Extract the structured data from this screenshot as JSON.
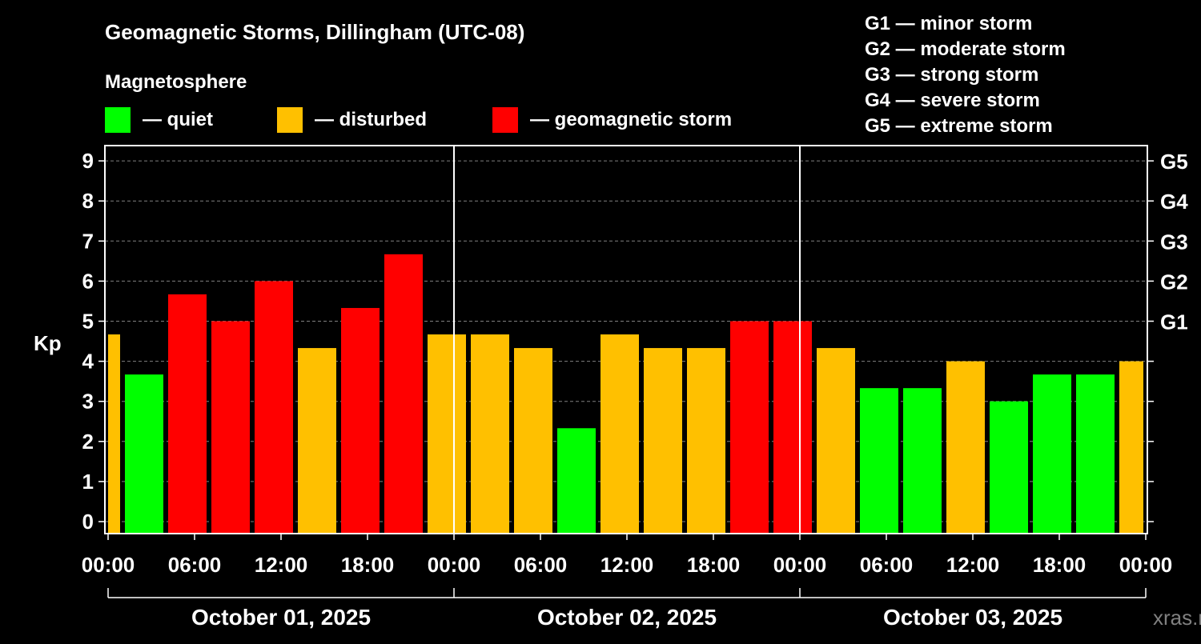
{
  "chart_data": {
    "type": "bar",
    "title": "Geomagnetic Storms, Dillingham (UTC-08)",
    "legend_title": "Magnetosphere",
    "legend": [
      {
        "label": "— quiet",
        "color": "#00ff00"
      },
      {
        "label": "— disturbed",
        "color": "#ffc000"
      },
      {
        "label": "— geomagnetic storm",
        "color": "#ff0000"
      }
    ],
    "g_scale": [
      "G1 — minor storm",
      "G2 — moderate storm",
      "G3 — strong storm",
      "G4 — severe storm",
      "G5 — extreme storm"
    ],
    "ylabel": "Kp",
    "ylim": [
      0,
      9
    ],
    "y_ticks": [
      "0",
      "1",
      "2",
      "3",
      "4",
      "5",
      "6",
      "7",
      "8",
      "9"
    ],
    "right_ticks": [
      {
        "kp": 5,
        "label": "G1"
      },
      {
        "kp": 6,
        "label": "G2"
      },
      {
        "kp": 7,
        "label": "G3"
      },
      {
        "kp": 8,
        "label": "G4"
      },
      {
        "kp": 9,
        "label": "G5"
      }
    ],
    "x_range_hours": [
      0,
      72
    ],
    "x_tick_labels": [
      "00:00",
      "06:00",
      "12:00",
      "18:00",
      "00:00",
      "06:00",
      "12:00",
      "18:00",
      "00:00",
      "06:00",
      "12:00",
      "18:00",
      "00:00"
    ],
    "dates": [
      "October 01, 2025",
      "October 02, 2025",
      "October 03, 2025"
    ],
    "bars": [
      {
        "start": -2,
        "kp": 4.67,
        "level": "disturbed"
      },
      {
        "start": 1,
        "kp": 3.67,
        "level": "quiet"
      },
      {
        "start": 4,
        "kp": 5.67,
        "level": "storm"
      },
      {
        "start": 7,
        "kp": 5.0,
        "level": "storm"
      },
      {
        "start": 10,
        "kp": 6.0,
        "level": "storm"
      },
      {
        "start": 13,
        "kp": 4.33,
        "level": "disturbed"
      },
      {
        "start": 16,
        "kp": 5.33,
        "level": "storm"
      },
      {
        "start": 19,
        "kp": 6.67,
        "level": "storm"
      },
      {
        "start": 22,
        "kp": 4.67,
        "level": "disturbed"
      },
      {
        "start": 25,
        "kp": 4.67,
        "level": "disturbed"
      },
      {
        "start": 28,
        "kp": 4.33,
        "level": "disturbed"
      },
      {
        "start": 31,
        "kp": 2.33,
        "level": "quiet"
      },
      {
        "start": 34,
        "kp": 4.67,
        "level": "disturbed"
      },
      {
        "start": 37,
        "kp": 4.33,
        "level": "disturbed"
      },
      {
        "start": 40,
        "kp": 4.33,
        "level": "disturbed"
      },
      {
        "start": 43,
        "kp": 5.0,
        "level": "storm"
      },
      {
        "start": 46,
        "kp": 5.0,
        "level": "storm"
      },
      {
        "start": 49,
        "kp": 4.33,
        "level": "disturbed"
      },
      {
        "start": 52,
        "kp": 3.33,
        "level": "quiet"
      },
      {
        "start": 55,
        "kp": 3.33,
        "level": "quiet"
      },
      {
        "start": 58,
        "kp": 4.0,
        "level": "disturbed"
      },
      {
        "start": 61,
        "kp": 3.0,
        "level": "quiet"
      },
      {
        "start": 64,
        "kp": 3.67,
        "level": "quiet"
      },
      {
        "start": 67,
        "kp": 3.67,
        "level": "quiet"
      },
      {
        "start": 70,
        "kp": 4.0,
        "level": "disturbed"
      }
    ],
    "colors": {
      "quiet": "#00ff00",
      "disturbed": "#ffc000",
      "storm": "#ff0000"
    },
    "grid": true
  },
  "watermark": "xras.ru"
}
